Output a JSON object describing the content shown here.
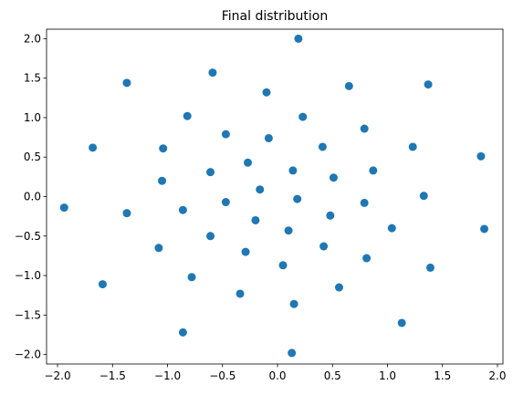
{
  "chart_data": {
    "type": "scatter",
    "title": "Final distribution",
    "xlabel": "",
    "ylabel": "",
    "xlim": [
      -2.1,
      2.05
    ],
    "ylim": [
      -2.12,
      2.12
    ],
    "xticks": [
      -2.0,
      -1.5,
      -1.0,
      -0.5,
      0.0,
      0.5,
      1.0,
      1.5,
      2.0
    ],
    "xtick_labels": [
      "−2.0",
      "−1.5",
      "−1.0",
      "−0.5",
      "0.0",
      "0.5",
      "1.0",
      "1.5",
      "2.0"
    ],
    "yticks": [
      2.0,
      1.5,
      1.0,
      0.5,
      0.0,
      -0.5,
      -1.0,
      -1.5,
      -2.0
    ],
    "ytick_labels": [
      "2.0",
      "1.5",
      "1.0",
      "0.5",
      "0.0",
      "−0.5",
      "−1.0",
      "−1.5",
      "−2.0"
    ],
    "grid": false,
    "legend": "none",
    "marker_color": "#1f77b4",
    "points": [
      {
        "x": 0.19,
        "y": 2.0
      },
      {
        "x": -0.59,
        "y": 1.57
      },
      {
        "x": -1.37,
        "y": 1.44
      },
      {
        "x": 0.65,
        "y": 1.4
      },
      {
        "x": 1.37,
        "y": 1.42
      },
      {
        "x": -0.1,
        "y": 1.32
      },
      {
        "x": 0.23,
        "y": 1.01
      },
      {
        "x": -0.82,
        "y": 1.02
      },
      {
        "x": 0.79,
        "y": 0.86
      },
      {
        "x": -0.47,
        "y": 0.79
      },
      {
        "x": -0.08,
        "y": 0.74
      },
      {
        "x": -1.68,
        "y": 0.62
      },
      {
        "x": -1.04,
        "y": 0.61
      },
      {
        "x": 0.41,
        "y": 0.63
      },
      {
        "x": 1.23,
        "y": 0.63
      },
      {
        "x": 1.85,
        "y": 0.51
      },
      {
        "x": -0.27,
        "y": 0.43
      },
      {
        "x": 0.14,
        "y": 0.33
      },
      {
        "x": 0.87,
        "y": 0.33
      },
      {
        "x": -0.61,
        "y": 0.31
      },
      {
        "x": 0.51,
        "y": 0.24
      },
      {
        "x": -1.05,
        "y": 0.2
      },
      {
        "x": -0.16,
        "y": 0.09
      },
      {
        "x": 1.33,
        "y": 0.01
      },
      {
        "x": 0.18,
        "y": -0.03
      },
      {
        "x": -0.47,
        "y": -0.07
      },
      {
        "x": 0.79,
        "y": -0.08
      },
      {
        "x": -1.94,
        "y": -0.14
      },
      {
        "x": -0.86,
        "y": -0.17
      },
      {
        "x": -1.37,
        "y": -0.21
      },
      {
        "x": 0.48,
        "y": -0.24
      },
      {
        "x": -0.2,
        "y": -0.3
      },
      {
        "x": 1.04,
        "y": -0.4
      },
      {
        "x": 1.88,
        "y": -0.41
      },
      {
        "x": 0.1,
        "y": -0.43
      },
      {
        "x": -0.61,
        "y": -0.5
      },
      {
        "x": 0.42,
        "y": -0.63
      },
      {
        "x": -1.08,
        "y": -0.65
      },
      {
        "x": -0.29,
        "y": -0.7
      },
      {
        "x": 0.81,
        "y": -0.78
      },
      {
        "x": 0.05,
        "y": -0.87
      },
      {
        "x": 1.39,
        "y": -0.9
      },
      {
        "x": -0.78,
        "y": -1.02
      },
      {
        "x": -1.59,
        "y": -1.11
      },
      {
        "x": 0.56,
        "y": -1.15
      },
      {
        "x": -0.34,
        "y": -1.23
      },
      {
        "x": 0.15,
        "y": -1.36
      },
      {
        "x": 1.13,
        "y": -1.6
      },
      {
        "x": -0.86,
        "y": -1.72
      },
      {
        "x": 0.13,
        "y": -1.98
      }
    ]
  }
}
